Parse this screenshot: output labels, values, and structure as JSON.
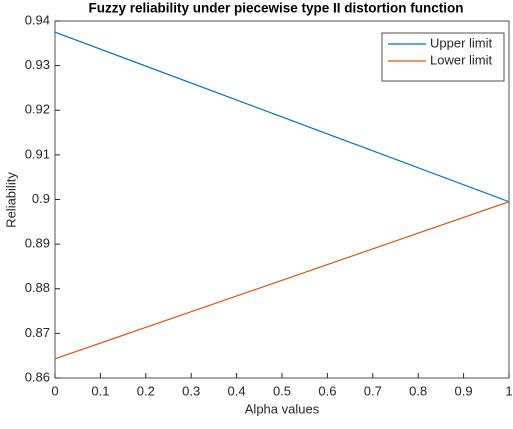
{
  "chart_data": {
    "type": "line",
    "title": "Fuzzy reliability under piecewise type II distortion function",
    "x_label": "Alpha values",
    "y_label": "Reliability",
    "x": [
      0,
      0.5,
      1
    ],
    "series": [
      {
        "name": "Upper limit",
        "color": "#0072bd",
        "values": [
          0.9375,
          0.9185,
          0.8995
        ]
      },
      {
        "name": "Lower limit",
        "color": "#d95319",
        "values": [
          0.8643,
          0.8819,
          0.8995
        ]
      }
    ],
    "xlim": [
      0,
      1
    ],
    "xticks": [
      0,
      0.1,
      0.2,
      0.3,
      0.4,
      0.5,
      0.6,
      0.7,
      0.8,
      0.9,
      1
    ],
    "ylim": [
      0.86,
      0.94
    ],
    "yticks": [
      0.86,
      0.87,
      0.88,
      0.89,
      0.9,
      0.91,
      0.92,
      0.93,
      0.94
    ],
    "legend": "top-right"
  }
}
